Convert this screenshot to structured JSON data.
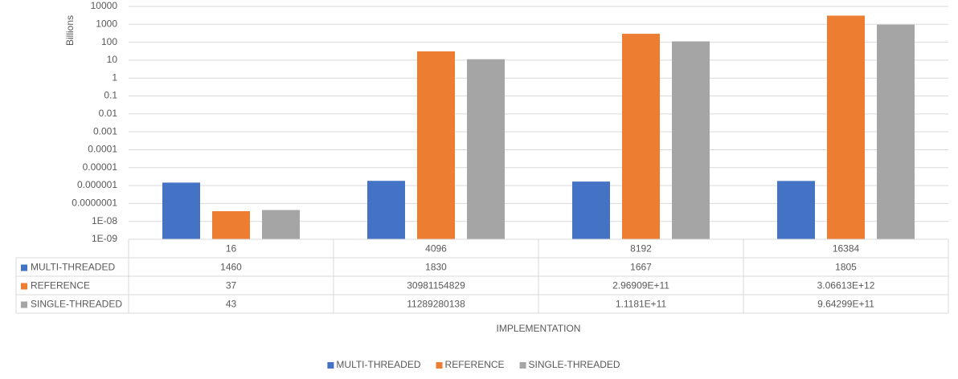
{
  "chart_data": {
    "type": "bar",
    "y_label": "Billions",
    "x_label": "IMPLEMENTATION",
    "log_scale": true,
    "grid": true,
    "legend": "bottom",
    "data_table": true,
    "categories": [
      "16",
      "4096",
      "8192",
      "16384"
    ],
    "series": [
      {
        "name": "MULTI-THREADED",
        "color": "#4472c4",
        "values": [
          1.46e-06,
          1.83e-06,
          1.667e-06,
          1.805e-06
        ],
        "value_labels": [
          "1460",
          "1830",
          "1667",
          "1805"
        ]
      },
      {
        "name": "REFERENCE",
        "color": "#ed7d31",
        "values": [
          3.7e-08,
          30.981154829,
          296.909,
          3066.13
        ],
        "value_labels": [
          "37",
          "30981154829",
          "2.96909E+11",
          "3.06613E+12"
        ]
      },
      {
        "name": "SINGLE-THREADED",
        "color": "#a5a5a5",
        "values": [
          4.3e-08,
          11.289280138,
          111.81,
          964.299
        ],
        "value_labels": [
          "43",
          "11289280138",
          "1.1181E+11",
          "9.64299E+11"
        ]
      }
    ],
    "ylim": [
      1e-09,
      10000
    ],
    "yticks": [
      {
        "value": 1e-09,
        "label": "1E-09"
      },
      {
        "value": 1e-08,
        "label": "1E-08"
      },
      {
        "value": 1e-07,
        "label": "0.0000001"
      },
      1e-06,
      1e-05,
      0.0001,
      0.001,
      0.01,
      0.1,
      1,
      10,
      100,
      1000,
      10000
    ]
  }
}
